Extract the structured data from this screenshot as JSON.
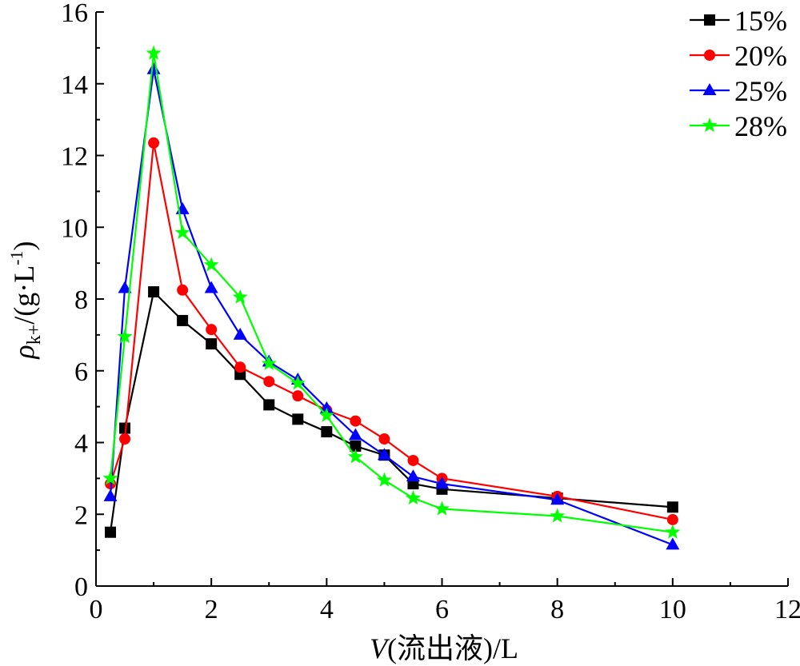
{
  "chart_data": {
    "type": "line",
    "xlabel_var": "V",
    "xlabel_rest": "(流出液)/L",
    "ylabel_var": "ρ",
    "ylabel_sub": "k+",
    "ylabel_rest": "/(g·L",
    "ylabel_sup": "-1",
    "ylabel_close": ")",
    "xlim": [
      0,
      12
    ],
    "ylim": [
      0,
      16
    ],
    "xticks": [
      0,
      2,
      4,
      6,
      8,
      10,
      12
    ],
    "yticks": [
      0,
      2,
      4,
      6,
      8,
      10,
      12,
      14,
      16
    ],
    "grid": false,
    "legend_position": "top-right",
    "series": [
      {
        "name": "15%",
        "color": "#000000",
        "marker": "square",
        "x": [
          0.25,
          0.5,
          1,
          1.5,
          2,
          2.5,
          3,
          3.5,
          4,
          4.5,
          5,
          5.5,
          6,
          8,
          10
        ],
        "y": [
          1.5,
          4.4,
          8.2,
          7.4,
          6.75,
          5.9,
          5.05,
          4.65,
          4.3,
          3.9,
          3.65,
          2.85,
          2.7,
          2.45,
          2.2
        ]
      },
      {
        "name": "20%",
        "color": "#ff0000",
        "marker": "circle",
        "x": [
          0.25,
          0.5,
          1,
          1.5,
          2,
          2.5,
          3,
          3.5,
          4,
          4.5,
          5,
          5.5,
          6,
          8,
          10
        ],
        "y": [
          2.85,
          4.1,
          12.35,
          8.25,
          7.15,
          6.1,
          5.7,
          5.3,
          4.9,
          4.6,
          4.1,
          3.5,
          3.0,
          2.5,
          1.85
        ]
      },
      {
        "name": "25%",
        "color": "#0000ff",
        "marker": "triangle",
        "x": [
          0.25,
          0.5,
          1,
          1.5,
          2,
          2.5,
          3,
          3.5,
          4,
          4.5,
          5,
          5.5,
          6,
          8,
          10
        ],
        "y": [
          2.5,
          8.3,
          14.4,
          10.5,
          8.3,
          7.0,
          6.25,
          5.75,
          4.95,
          4.2,
          3.65,
          3.05,
          2.85,
          2.4,
          1.15
        ]
      },
      {
        "name": "28%",
        "color": "#00ff00",
        "marker": "star",
        "x": [
          0.25,
          0.5,
          1,
          1.5,
          2,
          2.5,
          3,
          3.5,
          4,
          4.5,
          5,
          5.5,
          6,
          8,
          10
        ],
        "y": [
          3.0,
          6.95,
          14.85,
          9.85,
          8.95,
          8.05,
          6.2,
          5.65,
          4.75,
          3.6,
          2.95,
          2.45,
          2.15,
          1.95,
          1.5
        ]
      }
    ]
  }
}
